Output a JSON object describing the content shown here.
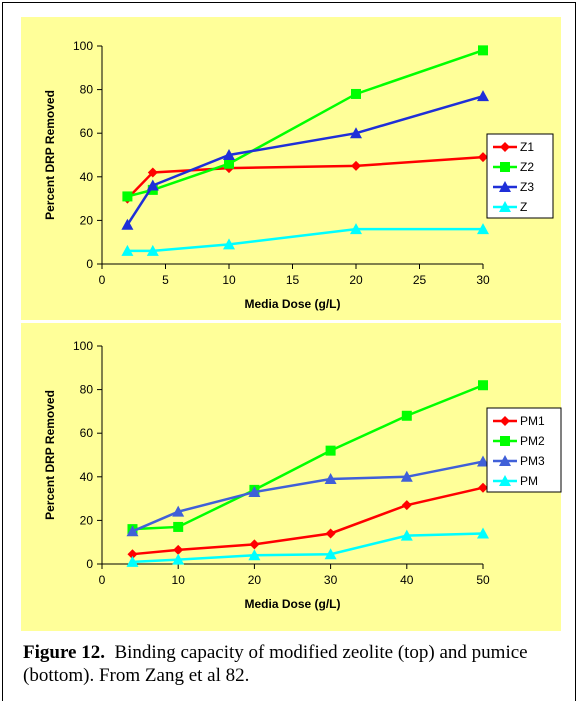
{
  "caption": {
    "label": "Figure 12.",
    "text": "Binding capacity of modified zeolite (top) and pumice (bottom).  From Zang et al 82."
  },
  "colors": {
    "panel_bg": "#FFFF99",
    "red": "#FF0000",
    "green": "#00FF00",
    "blue": "#2B3EE0",
    "cyan": "#00FFFF"
  },
  "chart_data": [
    {
      "type": "line",
      "title": "",
      "xlabel": "Media Dose (g/L)",
      "ylabel": "Percent DRP Removed",
      "xlim": [
        0,
        30
      ],
      "ylim": [
        0,
        100
      ],
      "xticks": [
        0,
        5,
        10,
        15,
        20,
        25,
        30
      ],
      "yticks": [
        0,
        20,
        40,
        60,
        80,
        100
      ],
      "legend_position": "right",
      "series": [
        {
          "name": "Z1",
          "color": "#FF0000",
          "marker": "diamond",
          "points": [
            [
              2,
              30
            ],
            [
              4,
              42
            ],
            [
              10,
              44
            ],
            [
              20,
              45
            ],
            [
              30,
              49
            ]
          ]
        },
        {
          "name": "Z2",
          "color": "#00FF00",
          "marker": "square",
          "points": [
            [
              2,
              31
            ],
            [
              4,
              34
            ],
            [
              10,
              46
            ],
            [
              20,
              78
            ],
            [
              30,
              98
            ]
          ]
        },
        {
          "name": "Z3",
          "color": "#1F2FD8",
          "marker": "triangle",
          "points": [
            [
              2,
              18
            ],
            [
              4,
              36
            ],
            [
              10,
              50
            ],
            [
              20,
              60
            ],
            [
              30,
              77
            ]
          ]
        },
        {
          "name": "Z",
          "color": "#00FFFF",
          "marker": "triangle",
          "points": [
            [
              2,
              6
            ],
            [
              4,
              6
            ],
            [
              10,
              9
            ],
            [
              20,
              16
            ],
            [
              30,
              16
            ]
          ]
        }
      ]
    },
    {
      "type": "line",
      "title": "",
      "xlabel": "Media Dose (g/L)",
      "ylabel": "Percent DRP Removed",
      "xlim": [
        0,
        50
      ],
      "ylim": [
        0,
        100
      ],
      "xticks": [
        0,
        10,
        20,
        30,
        40,
        50
      ],
      "yticks": [
        0,
        20,
        40,
        60,
        80,
        100
      ],
      "legend_position": "right",
      "series": [
        {
          "name": "PM1",
          "color": "#FF0000",
          "marker": "diamond",
          "points": [
            [
              4,
              4.5
            ],
            [
              10,
              6.5
            ],
            [
              20,
              9
            ],
            [
              30,
              14
            ],
            [
              40,
              27
            ],
            [
              50,
              35
            ]
          ]
        },
        {
          "name": "PM2",
          "color": "#00FF00",
          "marker": "square",
          "points": [
            [
              4,
              16
            ],
            [
              10,
              17
            ],
            [
              20,
              34
            ],
            [
              30,
              52
            ],
            [
              40,
              68
            ],
            [
              50,
              82
            ]
          ]
        },
        {
          "name": "PM3",
          "color": "#4060D8",
          "marker": "triangle",
          "points": [
            [
              4,
              15
            ],
            [
              10,
              24
            ],
            [
              20,
              33
            ],
            [
              30,
              39
            ],
            [
              40,
              40
            ],
            [
              50,
              47
            ]
          ]
        },
        {
          "name": "PM",
          "color": "#00FFFF",
          "marker": "triangle",
          "points": [
            [
              4,
              1
            ],
            [
              10,
              2
            ],
            [
              20,
              4
            ],
            [
              30,
              4.5
            ],
            [
              40,
              13
            ],
            [
              50,
              14
            ]
          ]
        }
      ]
    }
  ]
}
